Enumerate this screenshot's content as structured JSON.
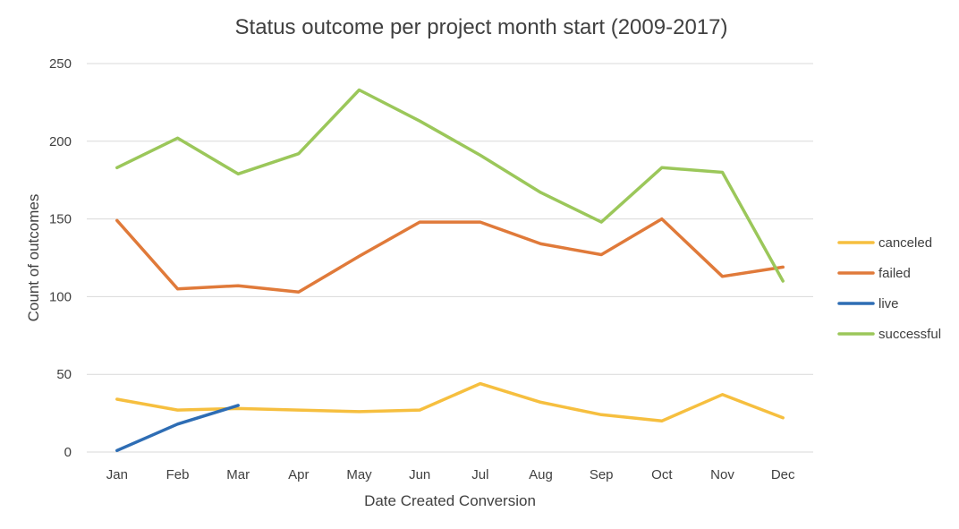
{
  "chart_data": {
    "type": "line",
    "title": "Status outcome per project month start (2009-2017)",
    "xlabel": "Date Created Conversion",
    "ylabel": "Count of outcomes",
    "categories": [
      "Jan",
      "Feb",
      "Mar",
      "Apr",
      "May",
      "Jun",
      "Jul",
      "Aug",
      "Sep",
      "Oct",
      "Nov",
      "Dec"
    ],
    "ylim": [
      0,
      250
    ],
    "yticks": [
      0,
      50,
      100,
      150,
      200,
      250
    ],
    "grid": true,
    "legend_position": "right",
    "series": [
      {
        "name": "canceled",
        "color": "#f6bf3f",
        "values": [
          34,
          27,
          28,
          27,
          26,
          27,
          44,
          32,
          24,
          20,
          37,
          22
        ]
      },
      {
        "name": "failed",
        "color": "#e07a3a",
        "values": [
          149,
          105,
          107,
          103,
          126,
          148,
          148,
          134,
          127,
          150,
          113,
          119
        ]
      },
      {
        "name": "live",
        "color": "#2e6db4",
        "values": [
          1,
          18,
          30,
          null,
          null,
          null,
          null,
          null,
          null,
          null,
          null,
          null
        ]
      },
      {
        "name": "successful",
        "color": "#9bc75a",
        "values": [
          183,
          202,
          179,
          192,
          233,
          213,
          191,
          167,
          148,
          183,
          180,
          110
        ]
      }
    ]
  }
}
